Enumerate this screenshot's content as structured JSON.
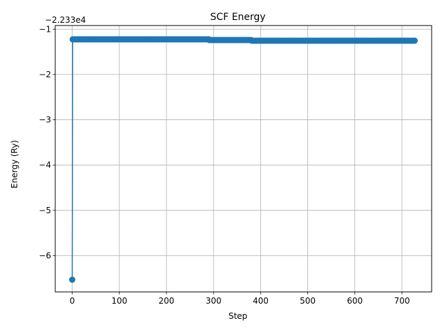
{
  "chart_data": {
    "type": "line",
    "title": "SCF Energy",
    "xlabel": "Step",
    "ylabel": "Energy (Ry)",
    "y_offset_label": "−2.233e4",
    "xlim": [
      -36,
      763
    ],
    "ylim": [
      -6.8,
      -0.92
    ],
    "xticks": [
      0,
      100,
      200,
      300,
      400,
      500,
      600,
      700
    ],
    "yticks": [
      -6,
      -5,
      -4,
      -3,
      -2,
      -1
    ],
    "ytick_labels": [
      "−6",
      "−5",
      "−4",
      "−3",
      "−2",
      "−1"
    ],
    "grid": true,
    "series": [
      {
        "color": "#1f77b4",
        "marker": "circle",
        "x_start": 0,
        "x_end": 727,
        "first_value": -6.53,
        "segments": [
          {
            "x_from": 1,
            "x_to": 290,
            "value": -1.225
          },
          {
            "x_from": 291,
            "x_to": 380,
            "value": -1.24
          },
          {
            "x_from": 381,
            "x_to": 727,
            "value": -1.255
          }
        ]
      }
    ]
  }
}
